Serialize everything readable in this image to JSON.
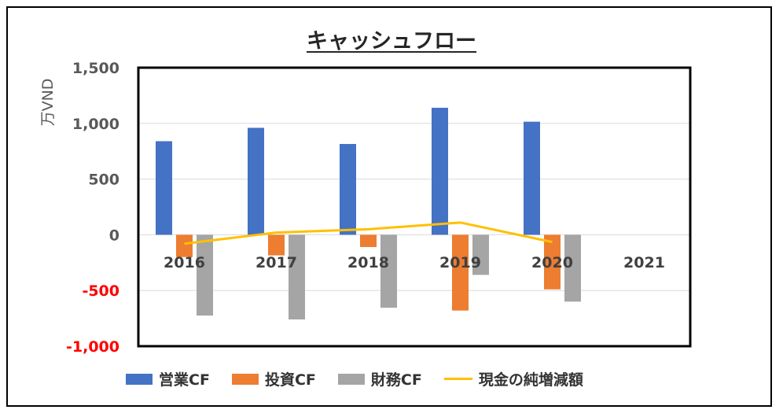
{
  "chart_data": {
    "type": "bar",
    "title": "キャッシュフロー",
    "ylabel": "万VND",
    "ylim": [
      -1000,
      1500
    ],
    "yticks": [
      {
        "value": 1500,
        "label": "1,500"
      },
      {
        "value": 1000,
        "label": "1,000"
      },
      {
        "value": 500,
        "label": "500"
      },
      {
        "value": 0,
        "label": "0"
      },
      {
        "value": -500,
        "label": "-500"
      },
      {
        "value": -1000,
        "label": "-1,000"
      }
    ],
    "categories": [
      "2016",
      "2017",
      "2018",
      "2019",
      "2020",
      "2021"
    ],
    "series": [
      {
        "name": "営業CF",
        "kind": "bar",
        "color": "#4472C4",
        "values": [
          840,
          960,
          815,
          1140,
          1015,
          null
        ]
      },
      {
        "name": "投資CF",
        "kind": "bar",
        "color": "#ED7D31",
        "values": [
          -200,
          -185,
          -110,
          -680,
          -490,
          null
        ]
      },
      {
        "name": "財務CF",
        "kind": "bar",
        "color": "#A5A5A5",
        "values": [
          -725,
          -760,
          -655,
          -360,
          -600,
          null
        ]
      },
      {
        "name": "現金の純増減額",
        "kind": "line",
        "color": "#FFC000",
        "values": [
          -80,
          20,
          50,
          110,
          -65,
          null
        ]
      }
    ],
    "negative_tick_color": "#FF0000",
    "grid": true,
    "legend_position": "bottom"
  }
}
